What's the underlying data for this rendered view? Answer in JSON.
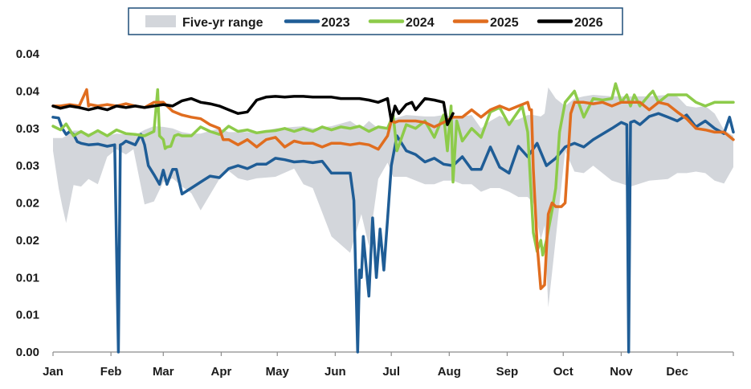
{
  "chart_data": {
    "type": "line",
    "title": "",
    "xlabel": "",
    "ylabel": "",
    "ylim": [
      0,
      0.04
    ],
    "y_ticks": [
      "0.00",
      "0.01",
      "0.01",
      "0.02",
      "0.02",
      "0.03",
      "0.03",
      "0.04",
      "0.04"
    ],
    "x_domain_days": [
      1,
      365
    ],
    "categories": [
      "Jan",
      "Feb",
      "Mar",
      "Apr",
      "May",
      "Jun",
      "Jul",
      "Aug",
      "Sep",
      "Oct",
      "Nov",
      "Dec"
    ],
    "legend_placement": "top-center",
    "grid": false,
    "range_band": {
      "name": "Five-yr range",
      "color": "#d3d6db",
      "x": [
        1,
        4,
        6,
        8,
        12,
        16,
        20,
        25,
        30,
        35,
        40,
        44,
        50,
        55,
        60,
        65,
        70,
        75,
        80,
        90,
        95,
        100,
        105,
        110,
        120,
        130,
        135,
        140,
        150,
        160,
        166,
        170,
        175,
        180,
        183,
        190,
        200,
        205,
        210,
        215,
        220,
        225,
        230,
        235,
        240,
        245,
        250,
        255,
        258,
        262,
        264,
        266,
        270,
        275,
        280,
        285,
        290,
        300,
        310,
        320,
        330,
        335,
        340,
        345,
        350,
        355,
        360,
        365
      ],
      "low": [
        0.027,
        0.022,
        0.0195,
        0.0173,
        0.0224,
        0.0222,
        0.0232,
        0.0225,
        0.0262,
        0.0272,
        0.0265,
        0.0272,
        0.0198,
        0.0202,
        0.0228,
        0.0233,
        0.0222,
        0.0213,
        0.019,
        0.0232,
        0.0243,
        0.0233,
        0.023,
        0.0233,
        0.0235,
        0.0246,
        0.0225,
        0.022,
        0.0155,
        0.0133,
        0.0185,
        0.0142,
        0.0232,
        0.0254,
        0.0235,
        0.0235,
        0.0225,
        0.0225,
        0.023,
        0.023,
        0.0225,
        0.0225,
        0.0215,
        0.022,
        0.022,
        0.0215,
        0.0208,
        0.0208,
        0.02,
        0.015,
        0.017,
        0.006,
        0.0152,
        0.027,
        0.0242,
        0.024,
        0.025,
        0.023,
        0.0222,
        0.023,
        0.0232,
        0.024,
        0.024,
        0.0242,
        0.024,
        0.023,
        0.0226,
        0.0248
      ],
      "high": [
        0.0287,
        0.0287,
        0.0287,
        0.029,
        0.0297,
        0.0297,
        0.0293,
        0.0298,
        0.029,
        0.0293,
        0.0292,
        0.029,
        0.0298,
        0.0303,
        0.0302,
        0.03,
        0.0295,
        0.0293,
        0.0293,
        0.03,
        0.0295,
        0.0295,
        0.0295,
        0.0294,
        0.03,
        0.0302,
        0.0303,
        0.03,
        0.0303,
        0.031,
        0.03,
        0.031,
        0.03,
        0.03,
        0.0313,
        0.0318,
        0.0316,
        0.0316,
        0.0318,
        0.0316,
        0.0316,
        0.0318,
        0.03,
        0.031,
        0.0317,
        0.031,
        0.0312,
        0.0318,
        0.0318,
        0.0316,
        0.032,
        0.0355,
        0.034,
        0.033,
        0.034,
        0.0343,
        0.0345,
        0.0343,
        0.0343,
        0.0343,
        0.0345,
        0.0343,
        0.033,
        0.0328,
        0.033,
        0.032,
        0.0298,
        0.029
      ]
    },
    "series": [
      {
        "name": "2023",
        "color": "#1f5d96",
        "x": [
          1,
          4,
          6,
          8,
          10,
          12,
          14,
          16,
          20,
          25,
          30,
          34,
          36,
          37,
          38,
          40,
          45,
          48,
          50,
          52,
          55,
          58,
          60,
          62,
          65,
          67,
          70,
          75,
          80,
          85,
          90,
          95,
          100,
          105,
          110,
          115,
          120,
          125,
          130,
          135,
          140,
          145,
          150,
          155,
          160,
          162,
          164,
          165,
          166,
          167,
          170,
          172,
          174,
          176,
          178,
          180,
          182,
          185,
          190,
          195,
          200,
          205,
          210,
          215,
          220,
          225,
          230,
          235,
          240,
          245,
          250,
          255,
          260,
          265,
          270,
          275,
          280,
          285,
          290,
          300,
          305,
          308,
          309,
          310,
          312,
          315,
          320,
          325,
          330,
          335,
          340,
          345,
          350,
          355,
          360,
          363,
          365
        ],
        "y": [
          0.0315,
          0.0314,
          0.03,
          0.0292,
          0.0296,
          0.0292,
          0.0282,
          0.028,
          0.0278,
          0.0279,
          0.0276,
          0.0278,
          0.0,
          0.0278,
          0.0279,
          0.0283,
          0.0278,
          0.0292,
          0.0278,
          0.025,
          0.0238,
          0.0225,
          0.0244,
          0.0225,
          0.0245,
          0.0245,
          0.0212,
          0.022,
          0.0228,
          0.0236,
          0.0234,
          0.0246,
          0.025,
          0.0246,
          0.0252,
          0.0252,
          0.026,
          0.0258,
          0.0255,
          0.0256,
          0.0254,
          0.0256,
          0.024,
          0.024,
          0.024,
          0.0203,
          0.0,
          0.011,
          0.01,
          0.0155,
          0.0075,
          0.018,
          0.01,
          0.0165,
          0.011,
          0.0178,
          0.025,
          0.029,
          0.027,
          0.0265,
          0.0255,
          0.026,
          0.0252,
          0.025,
          0.0262,
          0.0245,
          0.0245,
          0.0275,
          0.0248,
          0.024,
          0.0276,
          0.0262,
          0.028,
          0.025,
          0.026,
          0.0275,
          0.028,
          0.0275,
          0.0285,
          0.03,
          0.0308,
          0.0305,
          0.0,
          0.0308,
          0.031,
          0.0305,
          0.0316,
          0.032,
          0.0315,
          0.031,
          0.0318,
          0.0302,
          0.031,
          0.03,
          0.0293,
          0.0315,
          0.0295
        ]
      },
      {
        "name": "2024",
        "color": "#8dcb4a",
        "x": [
          1,
          5,
          8,
          12,
          16,
          20,
          25,
          30,
          35,
          40,
          45,
          50,
          55,
          57,
          58,
          60,
          61,
          62,
          64,
          66,
          68,
          70,
          75,
          80,
          85,
          90,
          95,
          100,
          105,
          110,
          115,
          120,
          125,
          130,
          135,
          140,
          145,
          150,
          155,
          160,
          165,
          170,
          175,
          180,
          183,
          185,
          190,
          195,
          200,
          205,
          210,
          212,
          214,
          215,
          217,
          220,
          225,
          230,
          235,
          240,
          245,
          250,
          252,
          255,
          258,
          260,
          262,
          263,
          265,
          268,
          270,
          272,
          275,
          280,
          285,
          290,
          295,
          300,
          302,
          305,
          308,
          310,
          312,
          315,
          320,
          322,
          325,
          330,
          335,
          340,
          345,
          350,
          355,
          360,
          365
        ],
        "y": [
          0.0303,
          0.0298,
          0.0306,
          0.029,
          0.0296,
          0.029,
          0.0297,
          0.029,
          0.0298,
          0.0293,
          0.0292,
          0.029,
          0.0296,
          0.0352,
          0.029,
          0.0285,
          0.0273,
          0.0275,
          0.0276,
          0.029,
          0.0292,
          0.029,
          0.029,
          0.0302,
          0.0296,
          0.0292,
          0.0303,
          0.0296,
          0.0298,
          0.0294,
          0.0296,
          0.0297,
          0.03,
          0.0296,
          0.03,
          0.0296,
          0.0302,
          0.0298,
          0.0302,
          0.03,
          0.0303,
          0.0296,
          0.0302,
          0.03,
          0.0318,
          0.027,
          0.0305,
          0.03,
          0.031,
          0.0288,
          0.0318,
          0.027,
          0.033,
          0.0228,
          0.031,
          0.0283,
          0.03,
          0.0288,
          0.0322,
          0.0328,
          0.0305,
          0.0323,
          0.033,
          0.0295,
          0.016,
          0.0135,
          0.015,
          0.013,
          0.015,
          0.019,
          0.022,
          0.0295,
          0.0335,
          0.035,
          0.0315,
          0.034,
          0.0338,
          0.034,
          0.036,
          0.0335,
          0.0345,
          0.033,
          0.0345,
          0.033,
          0.0345,
          0.035,
          0.0335,
          0.0345,
          0.0345,
          0.0345,
          0.0335,
          0.033,
          0.0335,
          0.0335,
          0.0335
        ]
      },
      {
        "name": "2025",
        "color": "#e06d1f",
        "x": [
          1,
          5,
          10,
          15,
          19,
          20,
          21,
          25,
          30,
          35,
          40,
          45,
          50,
          55,
          60,
          65,
          70,
          75,
          80,
          85,
          90,
          92,
          95,
          100,
          105,
          110,
          115,
          120,
          125,
          130,
          135,
          140,
          145,
          150,
          155,
          160,
          165,
          170,
          175,
          180,
          182,
          184,
          186,
          190,
          195,
          200,
          205,
          210,
          215,
          220,
          225,
          230,
          235,
          240,
          245,
          250,
          255,
          256,
          257,
          258,
          260,
          262,
          264,
          266,
          268,
          270,
          273,
          275,
          278,
          280,
          285,
          290,
          295,
          300,
          305,
          310,
          315,
          320,
          325,
          330,
          335,
          340,
          345,
          350,
          355,
          360,
          365
        ],
        "y": [
          0.033,
          0.033,
          0.0332,
          0.033,
          0.0352,
          0.033,
          0.0332,
          0.033,
          0.0332,
          0.033,
          0.0333,
          0.033,
          0.0328,
          0.0335,
          0.0335,
          0.0323,
          0.0318,
          0.0315,
          0.0313,
          0.0305,
          0.03,
          0.0285,
          0.0285,
          0.0278,
          0.0285,
          0.0275,
          0.0285,
          0.0288,
          0.0275,
          0.0283,
          0.028,
          0.028,
          0.0275,
          0.028,
          0.028,
          0.0278,
          0.028,
          0.0278,
          0.0272,
          0.029,
          0.031,
          0.0308,
          0.031,
          0.031,
          0.031,
          0.0308,
          0.0302,
          0.0308,
          0.0315,
          0.0315,
          0.0325,
          0.0315,
          0.0325,
          0.033,
          0.0325,
          0.033,
          0.0335,
          0.0325,
          0.0325,
          0.0245,
          0.0145,
          0.0085,
          0.009,
          0.0185,
          0.02,
          0.0195,
          0.0195,
          0.02,
          0.032,
          0.0335,
          0.0335,
          0.0333,
          0.0335,
          0.033,
          0.0335,
          0.0335,
          0.0335,
          0.0325,
          0.0335,
          0.0332,
          0.0322,
          0.0313,
          0.03,
          0.0298,
          0.0295,
          0.0295,
          0.0285
        ]
      },
      {
        "name": "2026",
        "color": "#000000",
        "x": [
          1,
          5,
          10,
          15,
          20,
          25,
          30,
          35,
          40,
          45,
          50,
          55,
          60,
          65,
          70,
          75,
          80,
          85,
          90,
          95,
          100,
          105,
          110,
          115,
          120,
          125,
          130,
          135,
          140,
          145,
          150,
          155,
          160,
          165,
          170,
          175,
          180,
          182,
          184,
          186,
          190,
          193,
          195,
          200,
          205,
          210,
          212,
          213,
          215
        ],
        "y": [
          0.033,
          0.0327,
          0.033,
          0.0328,
          0.0325,
          0.0328,
          0.0325,
          0.033,
          0.0328,
          0.033,
          0.0328,
          0.033,
          0.0332,
          0.033,
          0.0337,
          0.034,
          0.0335,
          0.0333,
          0.033,
          0.0325,
          0.032,
          0.0322,
          0.0338,
          0.0342,
          0.0343,
          0.0342,
          0.0343,
          0.0343,
          0.0342,
          0.0342,
          0.0342,
          0.034,
          0.034,
          0.034,
          0.0338,
          0.0335,
          0.034,
          0.031,
          0.033,
          0.032,
          0.0332,
          0.0335,
          0.0325,
          0.034,
          0.0338,
          0.0335,
          0.0305,
          0.031,
          0.032
        ]
      }
    ]
  }
}
